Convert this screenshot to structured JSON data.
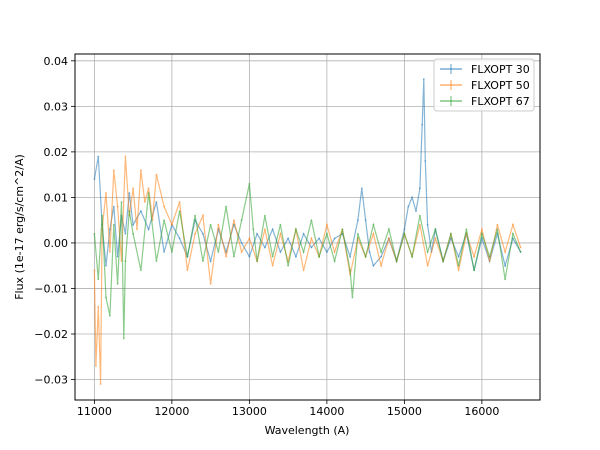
{
  "chart_data": {
    "type": "line",
    "title": "",
    "xlabel": "Wavelength (A)",
    "ylabel": "Flux (1e-17 erg/s/cm^2/A)",
    "xlim": [
      10750,
      16750
    ],
    "ylim": [
      -0.0345,
      0.0415
    ],
    "xticks": [
      11000,
      12000,
      13000,
      14000,
      15000,
      16000
    ],
    "xtick_labels": [
      "11000",
      "12000",
      "13000",
      "14000",
      "15000",
      "16000"
    ],
    "yticks": [
      -0.03,
      -0.02,
      -0.01,
      0.0,
      0.01,
      0.02,
      0.03,
      0.04
    ],
    "ytick_labels": [
      "−0.03",
      "−0.02",
      "−0.01",
      "0.00",
      "0.01",
      "0.02",
      "0.03",
      "0.04"
    ],
    "grid": true,
    "legend_position": "top-right",
    "series": [
      {
        "name": "FLXOPT 30",
        "color": "#1f77b4",
        "x": [
          11000,
          11050,
          11100,
          11150,
          11200,
          11250,
          11300,
          11350,
          11400,
          11450,
          11500,
          11600,
          11700,
          11800,
          11900,
          12000,
          12100,
          12200,
          12300,
          12400,
          12500,
          12600,
          12700,
          12800,
          12900,
          13000,
          13100,
          13200,
          13300,
          13400,
          13500,
          13600,
          13700,
          13800,
          13900,
          14000,
          14100,
          14200,
          14300,
          14400,
          14450,
          14500,
          14550,
          14600,
          14700,
          14800,
          14900,
          15000,
          15050,
          15100,
          15150,
          15200,
          15230,
          15250,
          15270,
          15300,
          15350,
          15400,
          15500,
          15600,
          15700,
          15800,
          15900,
          16000,
          16100,
          16200,
          16300,
          16400,
          16500
        ],
        "y": [
          0.014,
          0.019,
          0.004,
          -0.005,
          0.003,
          0.008,
          -0.003,
          0.006,
          0.002,
          0.011,
          0.004,
          0.007,
          0.003,
          0.009,
          -0.002,
          0.004,
          0.001,
          -0.003,
          0.005,
          0.002,
          -0.004,
          0.003,
          -0.002,
          0.004,
          0.0,
          -0.003,
          0.002,
          -0.001,
          0.003,
          -0.002,
          0.001,
          -0.003,
          0.002,
          -0.001,
          0.001,
          -0.002,
          0.001,
          0.002,
          -0.003,
          0.005,
          0.012,
          0.005,
          -0.002,
          -0.005,
          -0.003,
          0.001,
          -0.004,
          0.003,
          0.008,
          0.01,
          0.007,
          0.012,
          0.026,
          0.036,
          0.018,
          0.004,
          -0.002,
          0.003,
          -0.004,
          0.001,
          -0.003,
          0.002,
          -0.006,
          0.001,
          -0.004,
          0.002,
          -0.005,
          0.001,
          -0.002
        ]
      },
      {
        "name": "FLXOPT 50",
        "color": "#ff7f0e",
        "x": [
          11000,
          11020,
          11050,
          11080,
          11100,
          11150,
          11200,
          11250,
          11300,
          11350,
          11400,
          11450,
          11500,
          11550,
          11600,
          11650,
          11700,
          11750,
          11800,
          11900,
          12000,
          12100,
          12200,
          12300,
          12400,
          12500,
          12600,
          12700,
          12800,
          12900,
          13000,
          13100,
          13200,
          13300,
          13400,
          13500,
          13600,
          13700,
          13800,
          13900,
          14000,
          14100,
          14200,
          14300,
          14400,
          14500,
          14600,
          14700,
          14800,
          14900,
          15000,
          15100,
          15200,
          15300,
          15400,
          15500,
          15600,
          15700,
          15800,
          15900,
          16000,
          16100,
          16200,
          16300,
          16400,
          16500
        ],
        "y": [
          -0.006,
          -0.027,
          -0.014,
          -0.031,
          0.003,
          0.011,
          -0.002,
          0.016,
          0.008,
          -0.004,
          0.019,
          0.006,
          0.012,
          0.003,
          0.016,
          0.009,
          0.012,
          0.005,
          0.015,
          0.008,
          0.004,
          0.009,
          -0.006,
          0.002,
          0.006,
          -0.009,
          0.004,
          -0.003,
          0.005,
          -0.002,
          0.001,
          -0.004,
          0.003,
          -0.005,
          0.002,
          -0.004,
          0.003,
          -0.006,
          0.001,
          -0.003,
          0.004,
          -0.002,
          0.003,
          -0.007,
          0.001,
          -0.003,
          0.002,
          -0.005,
          0.001,
          -0.004,
          0.002,
          -0.003,
          0.004,
          -0.005,
          0.001,
          -0.004,
          0.002,
          -0.006,
          0.002,
          -0.003,
          0.003,
          -0.004,
          0.004,
          -0.002,
          0.004,
          -0.001
        ]
      },
      {
        "name": "FLXOPT 67",
        "color": "#2ca02c",
        "x": [
          11000,
          11050,
          11100,
          11150,
          11200,
          11250,
          11300,
          11350,
          11380,
          11400,
          11450,
          11500,
          11600,
          11700,
          11800,
          11900,
          12000,
          12100,
          12200,
          12300,
          12400,
          12500,
          12600,
          12700,
          12800,
          12900,
          13000,
          13050,
          13100,
          13200,
          13300,
          13400,
          13500,
          13600,
          13700,
          13800,
          13900,
          14000,
          14100,
          14200,
          14300,
          14330,
          14400,
          14500,
          14600,
          14700,
          14800,
          14900,
          15000,
          15100,
          15200,
          15300,
          15400,
          15500,
          15600,
          15700,
          15800,
          15900,
          16000,
          16100,
          16200,
          16300,
          16400,
          16500
        ],
        "y": [
          0.002,
          -0.008,
          0.006,
          -0.012,
          -0.016,
          0.004,
          -0.009,
          0.009,
          -0.021,
          -0.004,
          0.007,
          0.002,
          -0.006,
          0.011,
          -0.004,
          0.005,
          -0.002,
          0.007,
          -0.003,
          0.006,
          -0.004,
          0.004,
          -0.002,
          0.008,
          -0.003,
          0.005,
          0.013,
          0.003,
          -0.004,
          0.006,
          -0.003,
          0.004,
          -0.005,
          0.003,
          -0.002,
          0.005,
          -0.003,
          0.002,
          -0.004,
          0.003,
          -0.006,
          -0.012,
          0.002,
          -0.003,
          0.004,
          -0.002,
          0.003,
          -0.004,
          0.002,
          -0.003,
          0.006,
          -0.002,
          0.003,
          -0.004,
          0.002,
          -0.005,
          0.003,
          -0.006,
          0.002,
          -0.003,
          0.003,
          -0.008,
          0.002,
          -0.002
        ]
      }
    ]
  }
}
